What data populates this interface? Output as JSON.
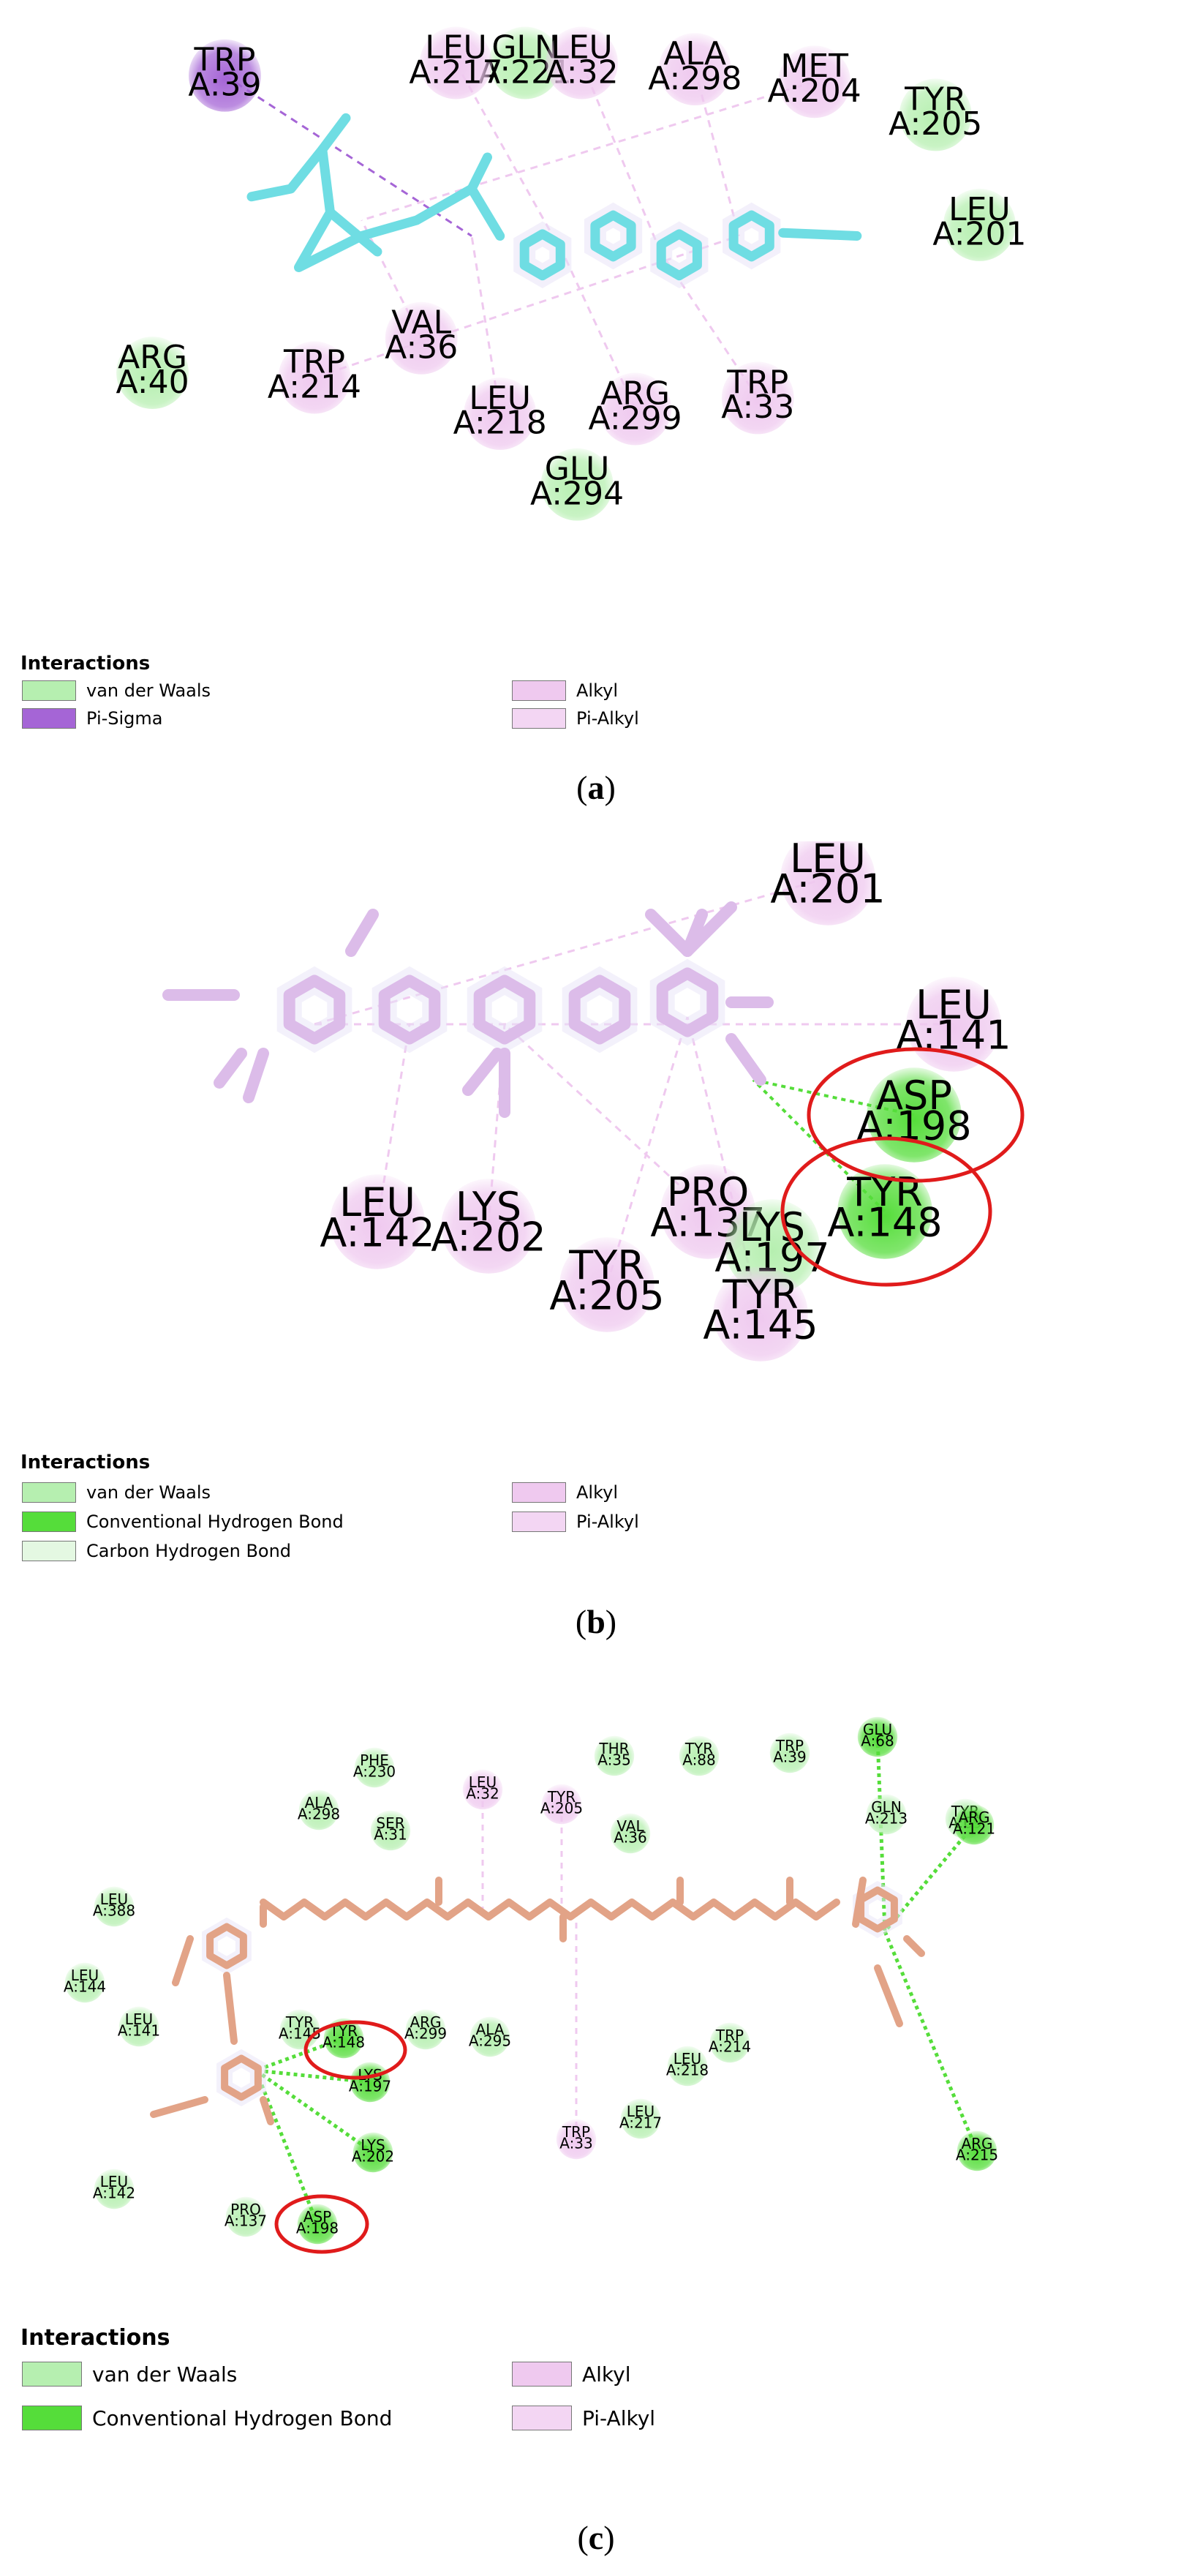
{
  "colors": {
    "vdw": "#b6efb0",
    "pi_sigma": "#a565d6",
    "alkyl": "#efc9ef",
    "pi_alkyl": "#f3d6f3",
    "hbond": "#55dd3a",
    "carbon_hbond": "#e4f8e2",
    "ligand_a": "#6fdde3",
    "ligand_b": "#dcbce9",
    "ligand_c": "#e2a387",
    "highlight_ring": "#e01b1b"
  },
  "panels": [
    {
      "id": "a",
      "caption": {
        "open": "(",
        "letter": "a",
        "close": ")"
      },
      "legend": {
        "title": "Interactions",
        "left_items": [
          {
            "label": "van der Waals",
            "color_key": "vdw"
          },
          {
            "label": "Pi-Sigma",
            "color_key": "pi_sigma"
          }
        ],
        "right_items": [
          {
            "label": "Alkyl",
            "color_key": "alkyl"
          },
          {
            "label": "Pi-Alkyl",
            "color_key": "pi_alkyl"
          }
        ]
      },
      "residues": [
        {
          "name": "GLN",
          "id": "A:221",
          "type": "vdw"
        },
        {
          "name": "TRP",
          "id": "A:39",
          "type": "pi_sigma"
        },
        {
          "name": "LEU",
          "id": "A:217",
          "type": "alkyl"
        },
        {
          "name": "LEU",
          "id": "A:32",
          "type": "alkyl"
        },
        {
          "name": "ALA",
          "id": "A:298",
          "type": "alkyl"
        },
        {
          "name": "MET",
          "id": "A:204",
          "type": "alkyl"
        },
        {
          "name": "TYR",
          "id": "A:205",
          "type": "vdw"
        },
        {
          "name": "LEU",
          "id": "A:201",
          "type": "vdw"
        },
        {
          "name": "ARG",
          "id": "A:40",
          "type": "vdw"
        },
        {
          "name": "TRP",
          "id": "A:214",
          "type": "alkyl"
        },
        {
          "name": "VAL",
          "id": "A:36",
          "type": "alkyl"
        },
        {
          "name": "LEU",
          "id": "A:218",
          "type": "alkyl"
        },
        {
          "name": "ARG",
          "id": "A:299",
          "type": "alkyl"
        },
        {
          "name": "TRP",
          "id": "A:33",
          "type": "alkyl"
        },
        {
          "name": "GLU",
          "id": "A:294",
          "type": "vdw"
        }
      ]
    },
    {
      "id": "b",
      "caption": {
        "open": "(",
        "letter": "b",
        "close": ")"
      },
      "legend": {
        "title": "Interactions",
        "left_items": [
          {
            "label": "van der Waals",
            "color_key": "vdw"
          },
          {
            "label": "Conventional Hydrogen Bond",
            "color_key": "hbond"
          },
          {
            "label": "Carbon Hydrogen Bond",
            "color_key": "carbon_hbond"
          }
        ],
        "right_items": [
          {
            "label": "Alkyl",
            "color_key": "alkyl"
          },
          {
            "label": "Pi-Alkyl",
            "color_key": "pi_alkyl"
          }
        ]
      },
      "residues": [
        {
          "name": "LEU",
          "id": "A:201",
          "type": "alkyl"
        },
        {
          "name": "LEU",
          "id": "A:141",
          "type": "alkyl"
        },
        {
          "name": "ASP",
          "id": "A:198",
          "type": "hbond"
        },
        {
          "name": "LEU",
          "id": "A:142",
          "type": "alkyl"
        },
        {
          "name": "LYS",
          "id": "A:202",
          "type": "alkyl"
        },
        {
          "name": "PRO",
          "id": "A:137",
          "type": "alkyl"
        },
        {
          "name": "LYS",
          "id": "A:197",
          "type": "vdw"
        },
        {
          "name": "TYR",
          "id": "A:148",
          "type": "hbond"
        },
        {
          "name": "TYR",
          "id": "A:205",
          "type": "alkyl"
        },
        {
          "name": "TYR",
          "id": "A:145",
          "type": "alkyl"
        }
      ]
    },
    {
      "id": "c",
      "caption": {
        "open": "(",
        "letter": "c",
        "close": ")"
      },
      "legend": {
        "title": "Interactions",
        "left_items": [
          {
            "label": "van der Waals",
            "color_key": "vdw"
          },
          {
            "label": "Conventional Hydrogen Bond",
            "color_key": "hbond"
          }
        ],
        "right_items": [
          {
            "label": "Alkyl",
            "color_key": "alkyl"
          },
          {
            "label": "Pi-Alkyl",
            "color_key": "pi_alkyl"
          }
        ]
      },
      "residues": [
        {
          "name": "PHE",
          "id": "A:230",
          "type": "vdw"
        },
        {
          "name": "THR",
          "id": "A:35",
          "type": "vdw"
        },
        {
          "name": "TYR",
          "id": "A:88",
          "type": "vdw"
        },
        {
          "name": "TRP",
          "id": "A:39",
          "type": "vdw"
        },
        {
          "name": "GLU",
          "id": "A:68",
          "type": "hbond"
        },
        {
          "name": "ALA",
          "id": "A:298",
          "type": "vdw"
        },
        {
          "name": "LEU",
          "id": "A:32",
          "type": "alkyl"
        },
        {
          "name": "TYR",
          "id": "A:205",
          "type": "alkyl"
        },
        {
          "name": "GLN",
          "id": "A:213",
          "type": "vdw"
        },
        {
          "name": "TYR",
          "id": "A:69",
          "type": "vdw"
        },
        {
          "name": "ARG",
          "id": "A:121",
          "type": "hbond"
        },
        {
          "name": "SER",
          "id": "A:31",
          "type": "vdw"
        },
        {
          "name": "VAL",
          "id": "A:36",
          "type": "vdw"
        },
        {
          "name": "LEU",
          "id": "A:388",
          "type": "vdw"
        },
        {
          "name": "LEU",
          "id": "A:144",
          "type": "vdw"
        },
        {
          "name": "LEU",
          "id": "A:141",
          "type": "vdw"
        },
        {
          "name": "TYR",
          "id": "A:145",
          "type": "vdw"
        },
        {
          "name": "TYR",
          "id": "A:148",
          "type": "hbond"
        },
        {
          "name": "ARG",
          "id": "A:299",
          "type": "vdw"
        },
        {
          "name": "ALA",
          "id": "A:295",
          "type": "vdw"
        },
        {
          "name": "TRP",
          "id": "A:214",
          "type": "vdw"
        },
        {
          "name": "LEU",
          "id": "A:218",
          "type": "vdw"
        },
        {
          "name": "LYS",
          "id": "A:197",
          "type": "hbond"
        },
        {
          "name": "LEU",
          "id": "A:217",
          "type": "vdw"
        },
        {
          "name": "TRP",
          "id": "A:33",
          "type": "alkyl"
        },
        {
          "name": "ARG",
          "id": "A:215",
          "type": "hbond"
        },
        {
          "name": "LYS",
          "id": "A:202",
          "type": "hbond"
        },
        {
          "name": "LEU",
          "id": "A:142",
          "type": "vdw"
        },
        {
          "name": "PRO",
          "id": "A:137",
          "type": "vdw"
        },
        {
          "name": "ASP",
          "id": "A:198",
          "type": "hbond"
        }
      ]
    }
  ]
}
